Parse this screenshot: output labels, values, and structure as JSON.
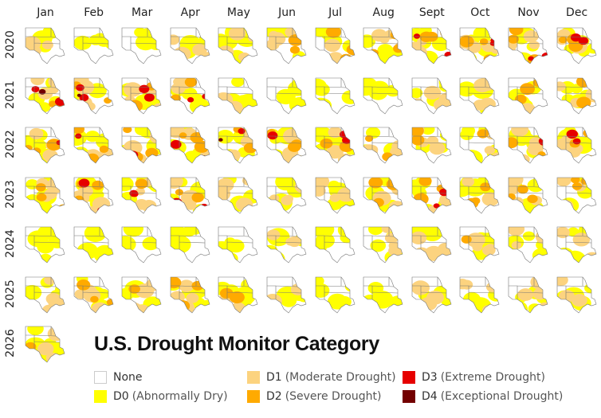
{
  "months": [
    "Jan",
    "Feb",
    "Mar",
    "Apr",
    "May",
    "Jun",
    "Jul",
    "Aug",
    "Sept",
    "Oct",
    "Nov",
    "Dec"
  ],
  "years": [
    "2020",
    "2021",
    "2022",
    "2023",
    "2024",
    "2025",
    "2026"
  ],
  "maps_dominant_category": [
    [
      "D1",
      "D0",
      "D0",
      "D1",
      "D1",
      "D2",
      "D2",
      "D2",
      "D3",
      "D3",
      "D3",
      "D3"
    ],
    [
      "D4",
      "D4",
      "D3",
      "D3",
      "D1",
      "D0",
      "D0",
      "D0",
      "D1",
      "D1",
      "D2",
      "D2"
    ],
    [
      "D3",
      "D3",
      "D3",
      "D4",
      "D4",
      "D3",
      "D3",
      "D2",
      "D2",
      "D2",
      "D3",
      "D3"
    ],
    [
      "D2",
      "D3",
      "D3",
      "D3",
      "D1",
      "D1",
      "D1",
      "D2",
      "D3",
      "D2",
      "D2",
      "D2"
    ],
    [
      "D0",
      "D0",
      "D0",
      "D0",
      "D0",
      "D1",
      "D0",
      "D1",
      "D1",
      "D2",
      "D1",
      "D1"
    ],
    [
      "D1",
      "D2",
      "D2",
      "D2",
      "D2",
      "D1",
      "D0",
      "D0",
      "D1",
      "D1",
      "D1",
      "D1"
    ],
    [
      "D2"
    ]
  ],
  "legend": {
    "title": "U.S. Drought Monitor Category",
    "items": [
      {
        "code": "None",
        "desc": "",
        "color": "#ffffff"
      },
      {
        "code": "D0",
        "desc": "(Abnormally Dry)",
        "color": "#ffff00"
      },
      {
        "code": "D1",
        "desc": "(Moderate Drought)",
        "color": "#fcd37f"
      },
      {
        "code": "D2",
        "desc": "(Severe Drought)",
        "color": "#ffaa00"
      },
      {
        "code": "D3",
        "desc": "(Extreme Drought)",
        "color": "#e60000"
      },
      {
        "code": "D4",
        "desc": "(Exceptional Drought)",
        "color": "#730000"
      }
    ]
  }
}
